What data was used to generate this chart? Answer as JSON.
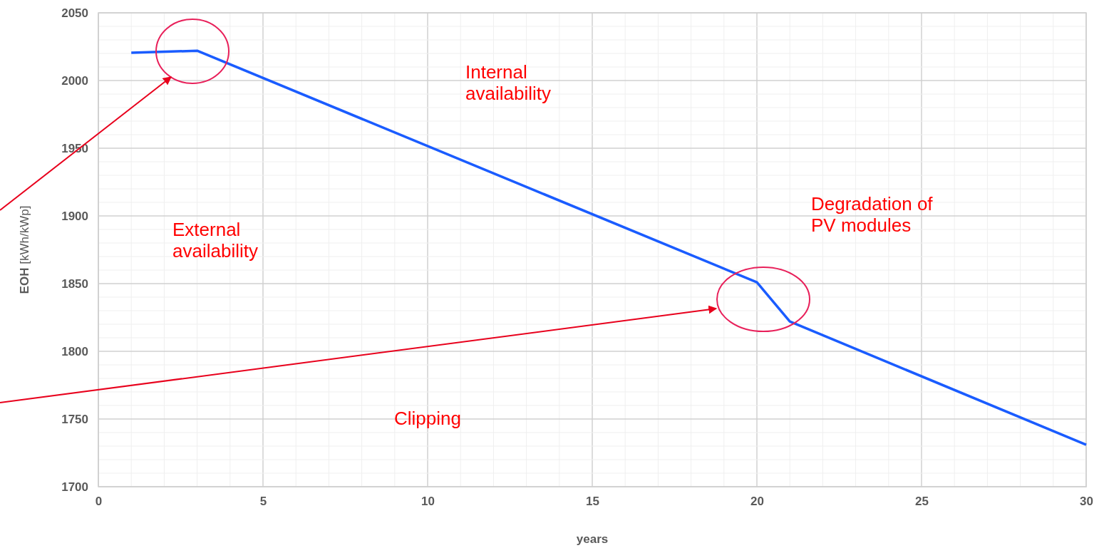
{
  "chart_data": {
    "type": "line",
    "xlabel": "years",
    "ylabel": "EOH [kWh/kWp]",
    "x": [
      1,
      3,
      20,
      21,
      30
    ],
    "series": [
      {
        "color": "#1a5cff",
        "values": [
          2020.5,
          2022,
          1851,
          1822,
          1731
        ]
      }
    ],
    "xlim": [
      0,
      30
    ],
    "xticks": [
      0,
      {
        "value": 1,
        "label": null
      },
      {
        "value": 2,
        "label": null
      },
      {
        "value": 3,
        "label": null
      },
      {
        "value": 4,
        "label": null
      },
      5,
      {
        "value": 6,
        "label": null
      },
      {
        "value": 7,
        "label": null
      },
      {
        "value": 8,
        "label": null
      },
      {
        "value": 9,
        "label": null
      },
      10,
      {
        "value": 11,
        "label": null
      },
      {
        "value": 12,
        "label": null
      },
      {
        "value": 13,
        "label": null
      },
      {
        "value": 14,
        "label": null
      },
      15,
      {
        "value": 16,
        "label": null
      },
      {
        "value": 17,
        "label": null
      },
      {
        "value": 18,
        "label": null
      },
      {
        "value": 19,
        "label": null
      },
      20,
      {
        "value": 21,
        "label": null
      },
      {
        "value": 22,
        "label": null
      },
      {
        "value": 23,
        "label": null
      },
      {
        "value": 24,
        "label": null
      },
      25,
      {
        "value": 26,
        "label": null
      },
      {
        "value": 27,
        "label": null
      },
      {
        "value": 28,
        "label": null
      },
      {
        "value": 29,
        "label": null
      },
      30
    ],
    "ylim": [
      1700,
      2050
    ],
    "yticks": [
      1700,
      {
        "value": 1710,
        "label": null
      },
      {
        "value": 1720,
        "label": null
      },
      {
        "value": 1730,
        "label": null
      },
      {
        "value": 1740,
        "label": null
      },
      1750,
      {
        "value": 1760,
        "label": null
      },
      {
        "value": 1770,
        "label": null
      },
      {
        "value": 1780,
        "label": null
      },
      {
        "value": 1790,
        "label": null
      },
      1800,
      {
        "value": 1810,
        "label": null
      },
      {
        "value": 1820,
        "label": null
      },
      {
        "value": 1830,
        "label": null
      },
      {
        "value": 1840,
        "label": null
      },
      1850,
      {
        "value": 1860,
        "label": null
      },
      {
        "value": 1870,
        "label": null
      },
      {
        "value": 1880,
        "label": null
      },
      {
        "value": 1890,
        "label": null
      },
      1900,
      {
        "value": 1910,
        "label": null
      },
      {
        "value": 1920,
        "label": null
      },
      {
        "value": 1930,
        "label": null
      },
      {
        "value": 1940,
        "label": null
      },
      1950,
      {
        "value": 1960,
        "label": null
      },
      {
        "value": 1970,
        "label": null
      },
      {
        "value": 1980,
        "label": null
      },
      {
        "value": 1990,
        "label": null
      },
      2000,
      {
        "value": 2010,
        "label": null
      },
      {
        "value": 2020,
        "label": null
      },
      {
        "value": 2030,
        "label": null
      },
      {
        "value": 2040,
        "label": null
      },
      2050
    ],
    "grid": true,
    "marker": "none",
    "line_style": "solid",
    "annotations": [
      "Internal\navailability",
      "External\navailability",
      "Degradation of\nPV modules",
      "Clipping"
    ]
  }
}
